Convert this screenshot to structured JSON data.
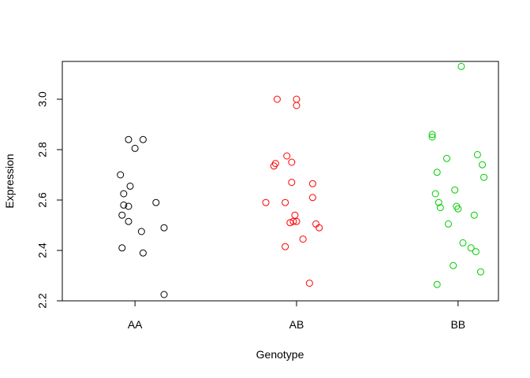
{
  "chart_data": {
    "type": "scatter",
    "title": "",
    "xlabel": "Genotype",
    "ylabel": "Expression",
    "categories": [
      "AA",
      "AB",
      "BB"
    ],
    "ylim": [
      2.2,
      3.15
    ],
    "xlim": [
      0.55,
      3.25
    ],
    "yticks": [
      "2.2",
      "2.4",
      "2.6",
      "2.8",
      "3.0"
    ],
    "grid": false,
    "legend": "none",
    "series": [
      {
        "color": "#000000",
        "points": [
          {
            "x": 0.91,
            "y": 2.7
          },
          {
            "x": 0.96,
            "y": 2.84
          },
          {
            "x": 1.05,
            "y": 2.84
          },
          {
            "x": 1.0,
            "y": 2.805
          },
          {
            "x": 0.93,
            "y": 2.625
          },
          {
            "x": 0.97,
            "y": 2.655
          },
          {
            "x": 0.93,
            "y": 2.58
          },
          {
            "x": 0.96,
            "y": 2.575
          },
          {
            "x": 0.92,
            "y": 2.54
          },
          {
            "x": 0.96,
            "y": 2.515
          },
          {
            "x": 1.13,
            "y": 2.59
          },
          {
            "x": 1.04,
            "y": 2.475
          },
          {
            "x": 1.18,
            "y": 2.49
          },
          {
            "x": 0.92,
            "y": 2.41
          },
          {
            "x": 1.05,
            "y": 2.39
          },
          {
            "x": 1.18,
            "y": 2.225
          }
        ]
      },
      {
        "color": "#ff0000",
        "points": [
          {
            "x": 1.88,
            "y": 3.0
          },
          {
            "x": 2.0,
            "y": 3.0
          },
          {
            "x": 2.0,
            "y": 2.975
          },
          {
            "x": 1.94,
            "y": 2.775
          },
          {
            "x": 1.87,
            "y": 2.745
          },
          {
            "x": 1.86,
            "y": 2.735
          },
          {
            "x": 1.97,
            "y": 2.75
          },
          {
            "x": 1.97,
            "y": 2.67
          },
          {
            "x": 2.1,
            "y": 2.665
          },
          {
            "x": 1.81,
            "y": 2.59
          },
          {
            "x": 1.93,
            "y": 2.59
          },
          {
            "x": 2.1,
            "y": 2.61
          },
          {
            "x": 1.99,
            "y": 2.54
          },
          {
            "x": 2.0,
            "y": 2.515
          },
          {
            "x": 1.98,
            "y": 2.515
          },
          {
            "x": 1.96,
            "y": 2.51
          },
          {
            "x": 2.12,
            "y": 2.505
          },
          {
            "x": 2.14,
            "y": 2.49
          },
          {
            "x": 2.04,
            "y": 2.445
          },
          {
            "x": 1.93,
            "y": 2.415
          },
          {
            "x": 2.08,
            "y": 2.27
          }
        ]
      },
      {
        "color": "#00cc00",
        "points": [
          {
            "x": 3.02,
            "y": 3.13
          },
          {
            "x": 2.84,
            "y": 2.86
          },
          {
            "x": 2.84,
            "y": 2.85
          },
          {
            "x": 2.93,
            "y": 2.765
          },
          {
            "x": 3.12,
            "y": 2.78
          },
          {
            "x": 3.15,
            "y": 2.74
          },
          {
            "x": 2.87,
            "y": 2.71
          },
          {
            "x": 3.16,
            "y": 2.69
          },
          {
            "x": 2.86,
            "y": 2.625
          },
          {
            "x": 2.98,
            "y": 2.64
          },
          {
            "x": 2.88,
            "y": 2.59
          },
          {
            "x": 2.89,
            "y": 2.57
          },
          {
            "x": 2.99,
            "y": 2.575
          },
          {
            "x": 3.0,
            "y": 2.565
          },
          {
            "x": 3.1,
            "y": 2.54
          },
          {
            "x": 2.94,
            "y": 2.505
          },
          {
            "x": 3.03,
            "y": 2.43
          },
          {
            "x": 3.08,
            "y": 2.41
          },
          {
            "x": 3.11,
            "y": 2.395
          },
          {
            "x": 2.97,
            "y": 2.34
          },
          {
            "x": 3.14,
            "y": 2.315
          },
          {
            "x": 2.87,
            "y": 2.265
          }
        ]
      }
    ]
  }
}
